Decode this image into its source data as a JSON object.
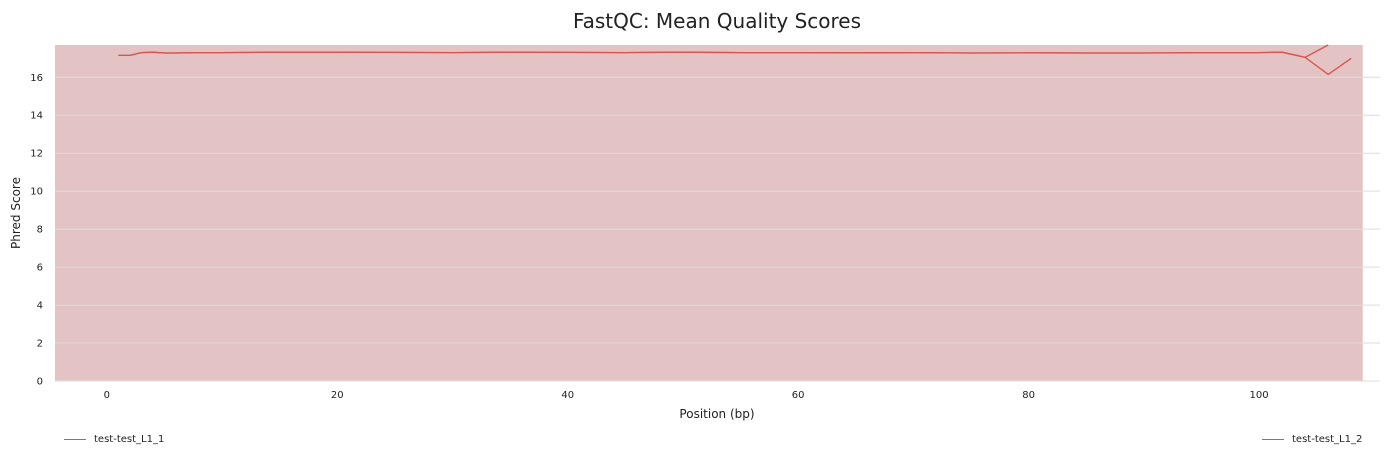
{
  "colors": {
    "line": "#d9534f",
    "fill": "#e3c3c3",
    "grid": "#dddddd"
  },
  "chart_data": {
    "type": "line",
    "title": "FastQC: Mean Quality Scores",
    "xlabel": "Position (bp)",
    "ylabel": "Phred Score",
    "xlim": [
      -4.5,
      110.5
    ],
    "ylim": [
      0,
      17.7
    ],
    "xticks": [
      0,
      20,
      40,
      60,
      80,
      100
    ],
    "yticks": [
      0,
      2,
      4,
      6,
      8,
      10,
      12,
      14,
      16
    ],
    "grid": "horizontal",
    "legend_position": "bottom",
    "background_band": {
      "x": [
        -4.5,
        109
      ],
      "y": [
        0,
        17.7
      ]
    },
    "series": [
      {
        "name": "test-test_L1_1",
        "x": [
          1,
          2,
          3,
          4,
          5,
          6,
          8,
          10,
          15,
          20,
          25,
          30,
          35,
          40,
          45,
          50,
          55,
          60,
          65,
          70,
          75,
          80,
          85,
          90,
          95,
          100,
          102,
          104,
          106
        ],
        "y": [
          17.15,
          17.15,
          17.3,
          17.32,
          17.28,
          17.28,
          17.3,
          17.3,
          17.32,
          17.32,
          17.31,
          17.3,
          17.32,
          17.31,
          17.3,
          17.32,
          17.3,
          17.3,
          17.29,
          17.3,
          17.28,
          17.29,
          17.28,
          17.28,
          17.3,
          17.3,
          17.32,
          17.05,
          17.7
        ]
      },
      {
        "name": "test-test_L1_2",
        "x": [
          1,
          2,
          3,
          4,
          5,
          6,
          8,
          10,
          15,
          20,
          25,
          30,
          35,
          40,
          45,
          50,
          55,
          60,
          65,
          70,
          75,
          80,
          85,
          90,
          95,
          100,
          102,
          104,
          106,
          108
        ],
        "y": [
          17.15,
          17.15,
          17.3,
          17.32,
          17.28,
          17.28,
          17.3,
          17.3,
          17.32,
          17.32,
          17.31,
          17.3,
          17.32,
          17.31,
          17.3,
          17.32,
          17.3,
          17.3,
          17.29,
          17.3,
          17.28,
          17.29,
          17.28,
          17.28,
          17.3,
          17.3,
          17.32,
          17.05,
          16.15,
          17.0
        ]
      }
    ]
  }
}
